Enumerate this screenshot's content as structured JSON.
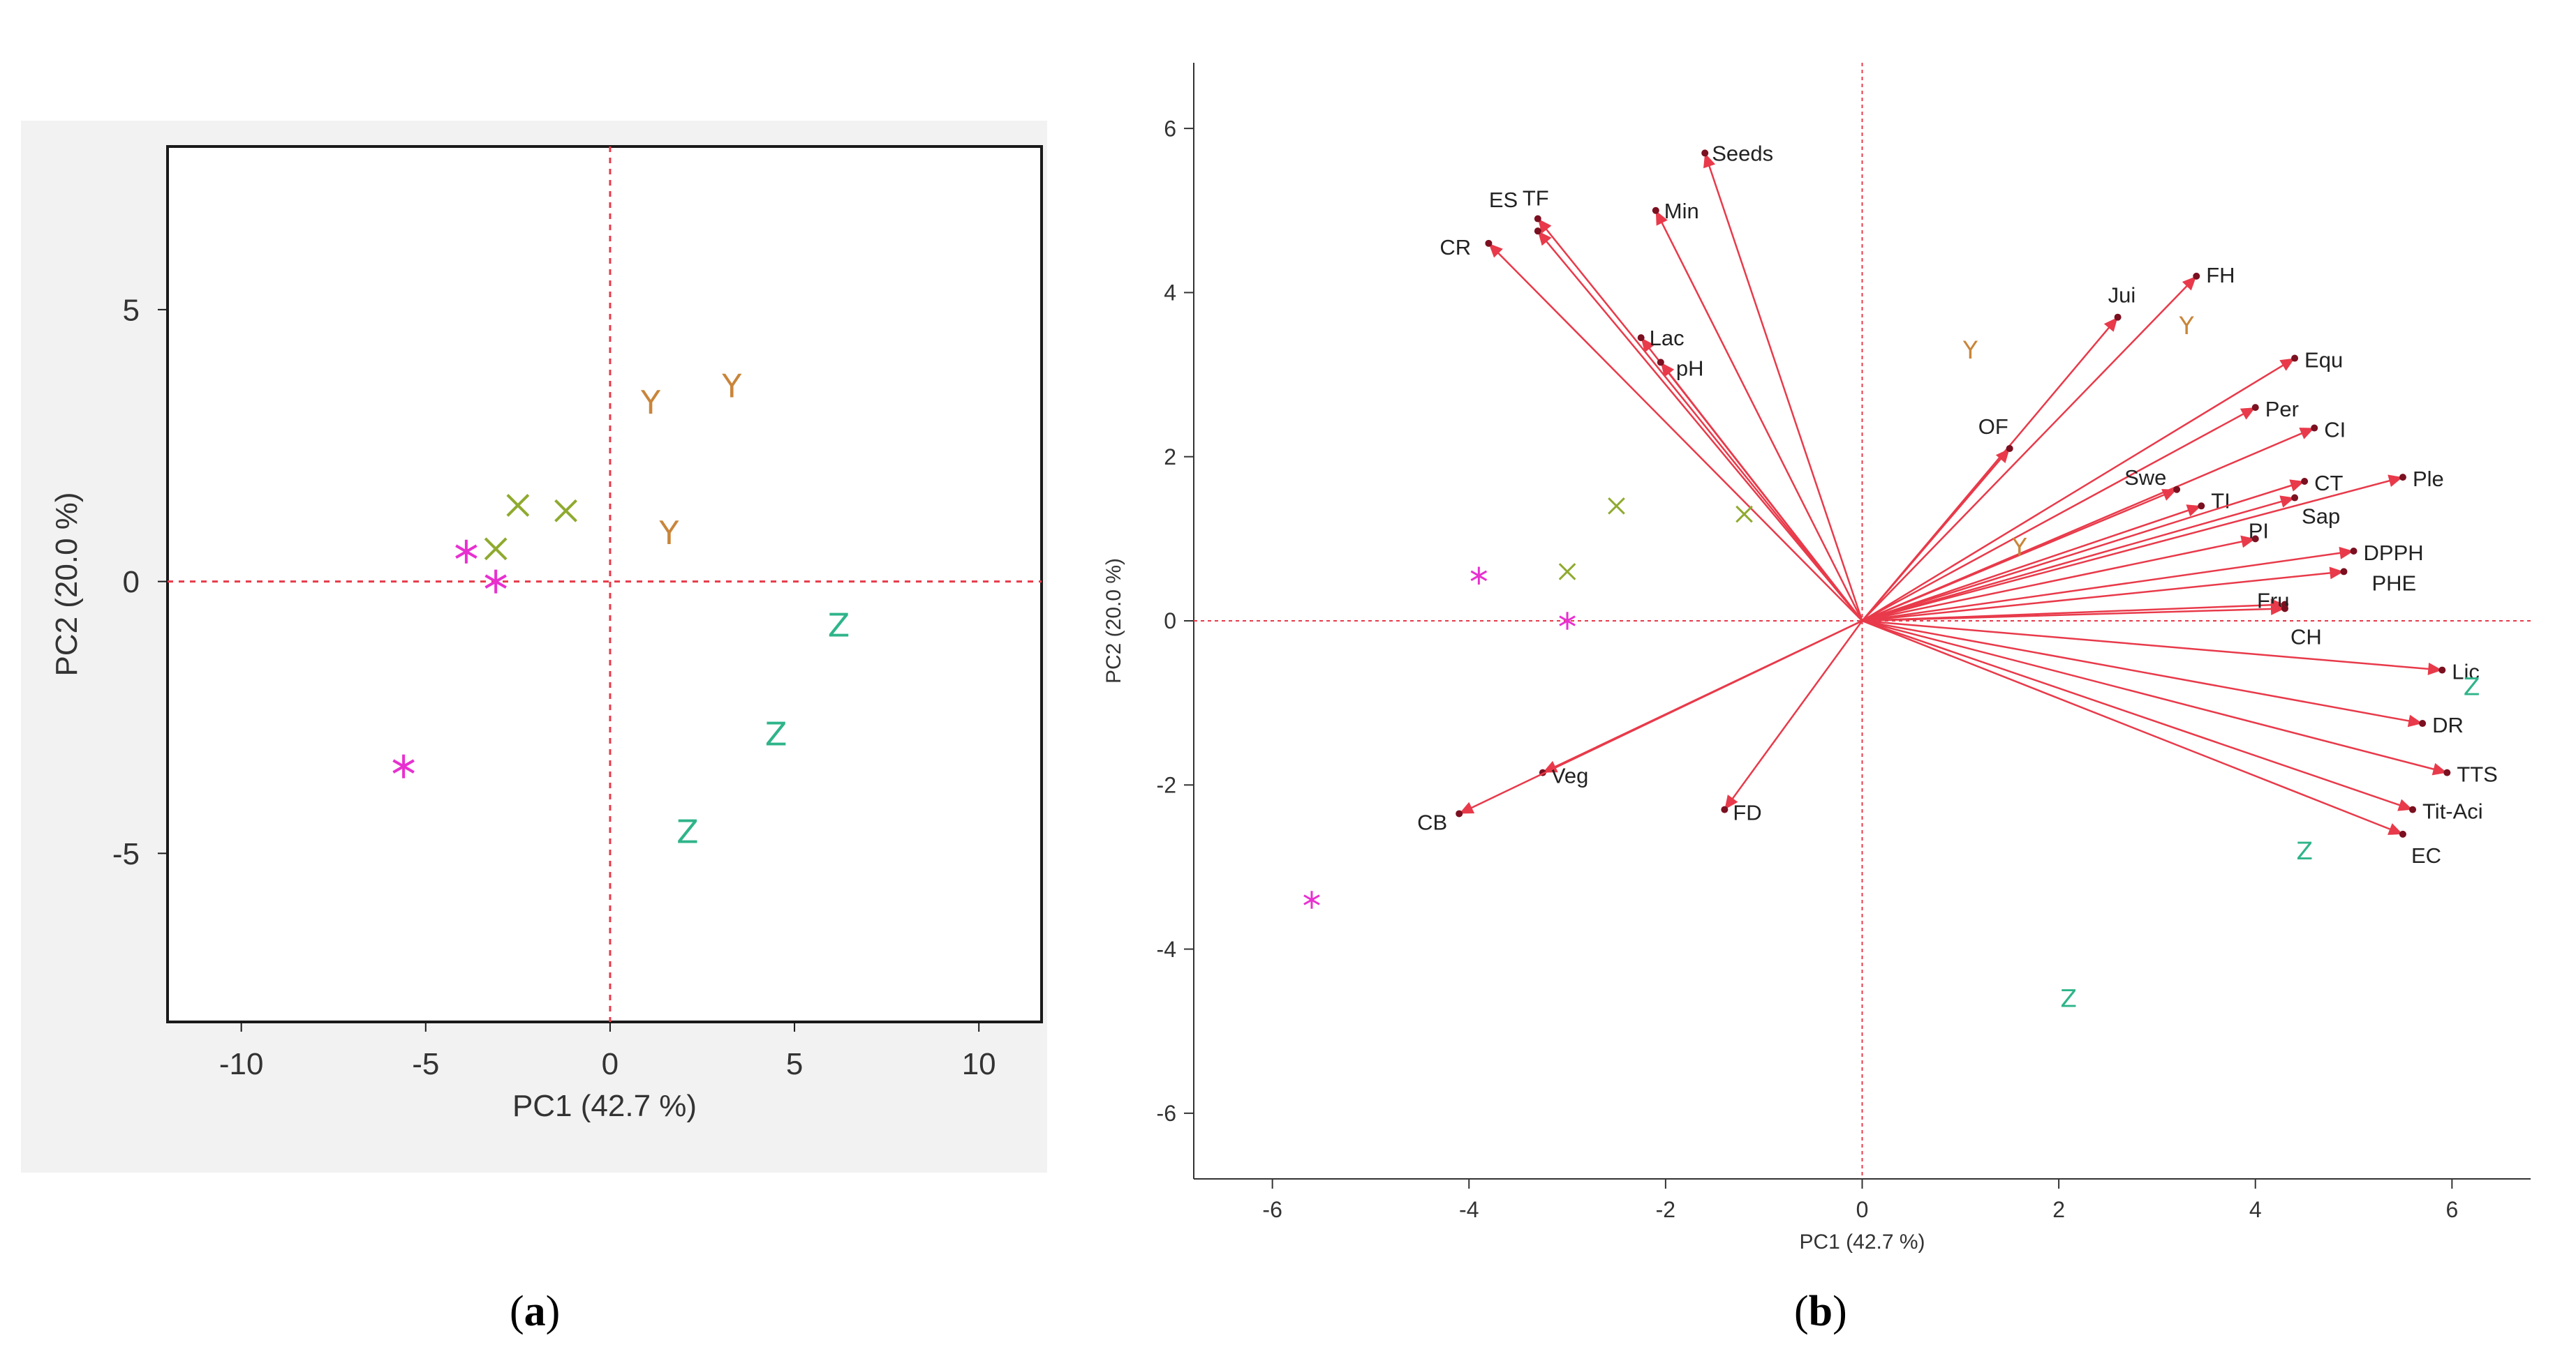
{
  "colors": {
    "X": "#8faa2f",
    "Y": "#c9853a",
    "Z": "#2fb48a",
    "star": "#e830d0",
    "vector": "#e83a4a",
    "zeroline": "#e83a4a"
  },
  "chart_data": [
    {
      "type": "scatter",
      "panel": "a",
      "xlabel": "PC1  (42.7 %)",
      "ylabel": "PC2  (20.0 %)",
      "xlim": [
        -12,
        11.7
      ],
      "ylim": [
        -8.1,
        8.0
      ],
      "xticks": [
        "-10",
        "-5",
        "0",
        "5",
        "10"
      ],
      "xtick_values": [
        -10,
        -5,
        0,
        5,
        10
      ],
      "yticks": [
        "5",
        "0",
        "-5"
      ],
      "ytick_values": [
        5,
        0,
        -5
      ],
      "grid": false,
      "series": [
        {
          "name": "X",
          "marker": "x",
          "points": [
            [
              -2.5,
              1.4
            ],
            [
              -1.2,
              1.3
            ],
            [
              -3.1,
              0.6
            ]
          ]
        },
        {
          "name": "Y",
          "marker": "Y",
          "points": [
            [
              1.1,
              3.3
            ],
            [
              3.3,
              3.6
            ],
            [
              1.6,
              0.9
            ]
          ]
        },
        {
          "name": "Z",
          "marker": "Z",
          "points": [
            [
              6.2,
              -0.8
            ],
            [
              4.5,
              -2.8
            ],
            [
              2.1,
              -4.6
            ]
          ]
        },
        {
          "name": "*",
          "marker": "star",
          "points": [
            [
              -3.9,
              0.55
            ],
            [
              -3.1,
              0.0
            ],
            [
              -5.6,
              -3.4
            ]
          ]
        }
      ]
    },
    {
      "type": "scatter",
      "subtype": "biplot",
      "panel": "b",
      "xlabel": "PC1  (42.7 %)",
      "ylabel": "PC2  (20.0 %)",
      "xlim": [
        -6.8,
        6.8
      ],
      "ylim": [
        -6.8,
        6.8
      ],
      "xticks": [
        "-6",
        "-4",
        "-2",
        "0",
        "2",
        "4",
        "6"
      ],
      "xtick_values": [
        -6,
        -4,
        -2,
        0,
        2,
        4,
        6
      ],
      "yticks": [
        "6",
        "4",
        "2",
        "0",
        "-2",
        "-4",
        "-6"
      ],
      "ytick_values": [
        6,
        4,
        2,
        0,
        -2,
        -4,
        -6
      ],
      "grid": false,
      "series": [
        {
          "name": "X",
          "marker": "x",
          "points": [
            [
              -2.5,
              1.4
            ],
            [
              -1.2,
              1.3
            ],
            [
              -3.0,
              0.6
            ]
          ]
        },
        {
          "name": "Y",
          "marker": "Y",
          "points": [
            [
              1.1,
              3.3
            ],
            [
              3.3,
              3.6
            ],
            [
              1.6,
              0.9
            ]
          ]
        },
        {
          "name": "Z",
          "marker": "Z",
          "points": [
            [
              6.2,
              -0.8
            ],
            [
              4.5,
              -2.8
            ],
            [
              2.1,
              -4.6
            ]
          ]
        },
        {
          "name": "*",
          "marker": "star",
          "points": [
            [
              -3.9,
              0.55
            ],
            [
              -3.0,
              0.0
            ],
            [
              -5.6,
              -3.4
            ]
          ]
        }
      ],
      "vectors": [
        {
          "label": "Seeds",
          "x": -1.6,
          "y": 5.7,
          "dx": 10,
          "dy": 0
        },
        {
          "label": "Min",
          "x": -2.1,
          "y": 5.0,
          "dx": 12,
          "dy": 0
        },
        {
          "label": "TF",
          "x": -3.3,
          "y": 4.9,
          "dx": -22,
          "dy": -30
        },
        {
          "label": "ES",
          "x": -3.3,
          "y": 4.75,
          "dx": -70,
          "dy": -45
        },
        {
          "label": "CR",
          "x": -3.8,
          "y": 4.6,
          "dx": -70,
          "dy": 5
        },
        {
          "label": "Lac",
          "x": -2.25,
          "y": 3.45,
          "dx": 12,
          "dy": 0
        },
        {
          "label": "pH",
          "x": -2.05,
          "y": 3.15,
          "dx": 22,
          "dy": 8
        },
        {
          "label": "Jui",
          "x": 2.6,
          "y": 3.7,
          "dx": -14,
          "dy": -32
        },
        {
          "label": "FH",
          "x": 3.4,
          "y": 4.2,
          "dx": 14,
          "dy": -2
        },
        {
          "label": "Equ",
          "x": 4.4,
          "y": 3.2,
          "dx": 14,
          "dy": 2
        },
        {
          "label": "OF",
          "x": 1.5,
          "y": 2.1,
          "dx": -45,
          "dy": -32
        },
        {
          "label": "Per",
          "x": 4.0,
          "y": 2.6,
          "dx": 14,
          "dy": 2
        },
        {
          "label": "CI",
          "x": 4.6,
          "y": 2.35,
          "dx": 14,
          "dy": 2
        },
        {
          "label": "Swe",
          "x": 3.2,
          "y": 1.6,
          "dx": -75,
          "dy": -18
        },
        {
          "label": "TI",
          "x": 3.45,
          "y": 1.4,
          "dx": 14,
          "dy": -8
        },
        {
          "label": "CT",
          "x": 4.5,
          "y": 1.7,
          "dx": 14,
          "dy": 2
        },
        {
          "label": "Sap",
          "x": 4.4,
          "y": 1.5,
          "dx": 10,
          "dy": 26
        },
        {
          "label": "Ple",
          "x": 5.5,
          "y": 1.75,
          "dx": 14,
          "dy": 2
        },
        {
          "label": "PI",
          "x": 4.0,
          "y": 1.0,
          "dx": -10,
          "dy": -12
        },
        {
          "label": "DPPH",
          "x": 5.0,
          "y": 0.85,
          "dx": 14,
          "dy": 2
        },
        {
          "label": "PHE",
          "x": 4.9,
          "y": 0.6,
          "dx": 40,
          "dy": 16
        },
        {
          "label": "Fru",
          "x": 4.3,
          "y": 0.2,
          "dx": -40,
          "dy": -6
        },
        {
          "label": "CH",
          "x": 4.3,
          "y": 0.15,
          "dx": 8,
          "dy": 40
        },
        {
          "label": "Lic",
          "x": 5.9,
          "y": -0.6,
          "dx": 14,
          "dy": 2
        },
        {
          "label": "DR",
          "x": 5.7,
          "y": -1.25,
          "dx": 14,
          "dy": 2
        },
        {
          "label": "TTS",
          "x": 5.95,
          "y": -1.85,
          "dx": 14,
          "dy": 2
        },
        {
          "label": "Tit-Aci",
          "x": 5.6,
          "y": -2.3,
          "dx": 14,
          "dy": 2
        },
        {
          "label": "EC",
          "x": 5.5,
          "y": -2.6,
          "dx": 12,
          "dy": 30
        },
        {
          "label": "Veg",
          "x": -3.25,
          "y": -1.85,
          "dx": 12,
          "dy": 4
        },
        {
          "label": "CB",
          "x": -4.1,
          "y": -2.35,
          "dx": -60,
          "dy": 12
        },
        {
          "label": "FD",
          "x": -1.4,
          "y": -2.3,
          "dx": 12,
          "dy": 4
        }
      ]
    }
  ],
  "captions": {
    "a": "a",
    "b": "b"
  }
}
